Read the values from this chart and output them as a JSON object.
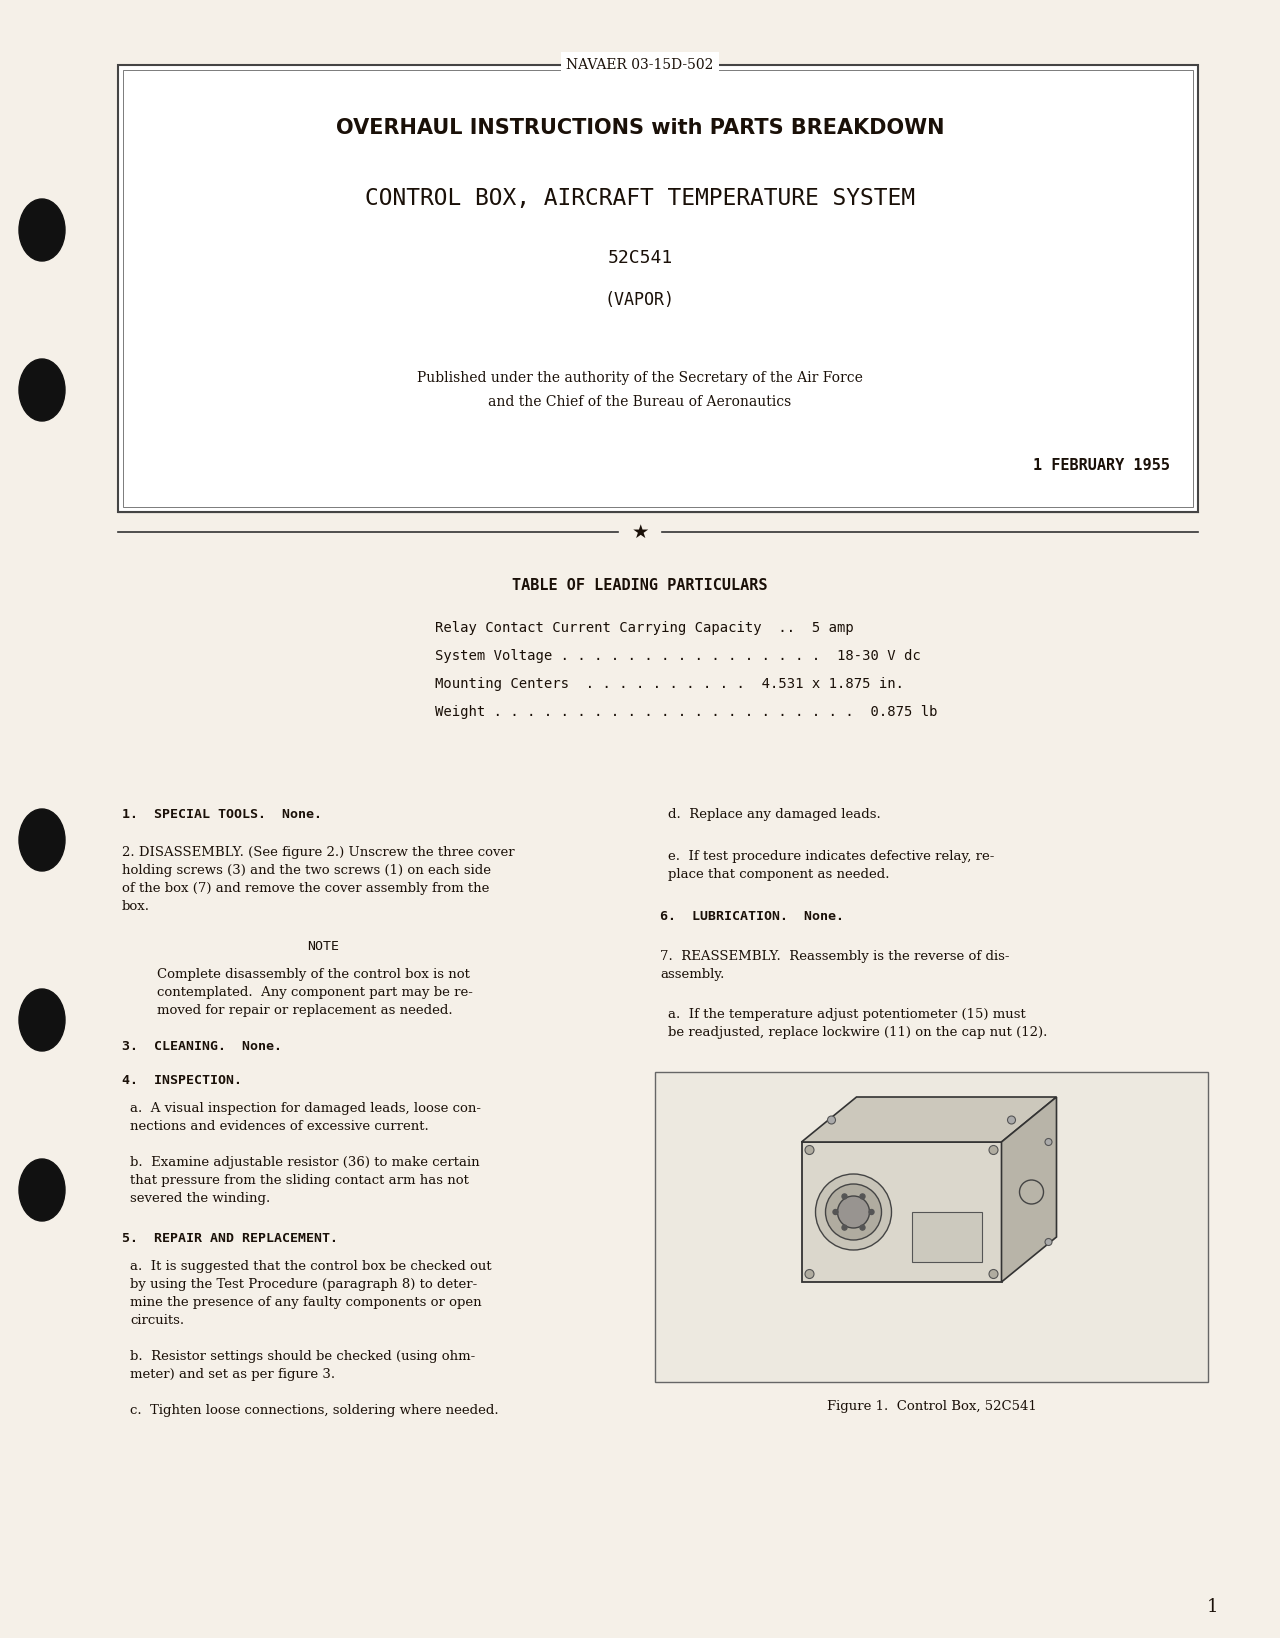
{
  "bg_color": "#f5f0e8",
  "text_color": "#1a1008",
  "header_label": "NAVAER 03-15D-502",
  "title_line1": "OVERHAUL INSTRUCTIONS with PARTS BREAKDOWN",
  "title_line2": "CONTROL BOX, AIRCRAFT TEMPERATURE SYSTEM",
  "title_line3": "52C541",
  "title_line4": "(VAPOR)",
  "published_line1": "Published under the authority of the Secretary of the Air Force",
  "published_line2": "and the Chief of the Bureau of Aeronautics",
  "date_line": "1 FEBRUARY 1955",
  "table_title": "TABLE OF LEADING PARTICULARS",
  "particulars": [
    "Relay Contact Current Carrying Capacity  ..  5 amp",
    "System Voltage . . . . . . . . . . . . . . . .  18-30 V dc",
    "Mounting Centers  . . . . . . . . . .  4.531 x 1.875 in.",
    "Weight . . . . . . . . . . . . . . . . . . . . . .  0.875 lb"
  ],
  "page_number": "1",
  "figure_caption": "Figure 1.  Control Box, 52C541"
}
